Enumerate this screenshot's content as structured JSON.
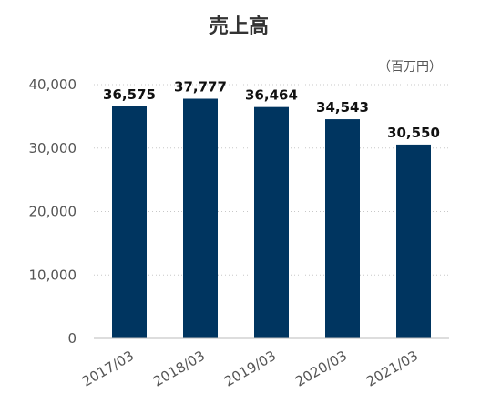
{
  "chart_data": {
    "type": "bar",
    "title": "売上高",
    "unit": "（百万円）",
    "categories": [
      "2017/03",
      "2018/03",
      "2019/03",
      "2020/03",
      "2021/03"
    ],
    "values": [
      36575,
      37777,
      36464,
      34543,
      30550
    ],
    "value_labels": [
      "36,575",
      "37,777",
      "36,464",
      "34,543",
      "30,550"
    ],
    "ylim": [
      0,
      40000
    ],
    "yticks": [
      0,
      10000,
      20000,
      30000,
      40000
    ],
    "ytick_labels": [
      "0",
      "10,000",
      "20,000",
      "30,000",
      "40,000"
    ],
    "grid": true,
    "legend": "none",
    "bar_color": "#003560"
  }
}
